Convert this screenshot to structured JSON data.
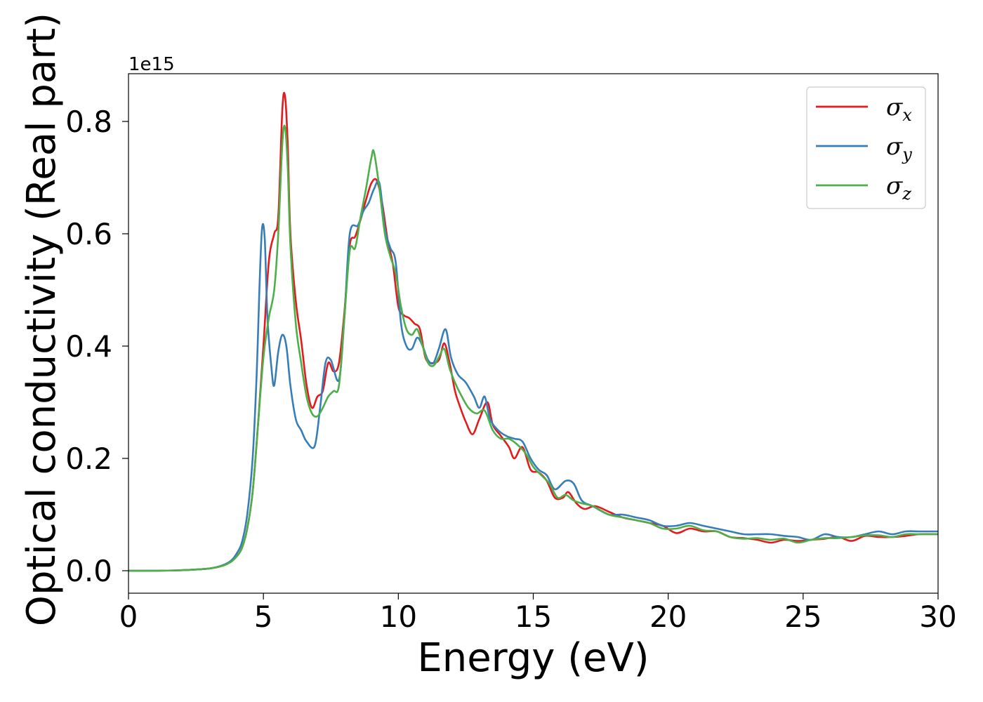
{
  "chart_data": {
    "type": "line",
    "title": "",
    "xlabel": "Energy (eV)",
    "ylabel": "Optical conductivity (Real part)",
    "y_offset_label": "1e15",
    "xlim": [
      0,
      30
    ],
    "ylim": [
      -0.04,
      0.885
    ],
    "xticks": [
      0,
      5,
      10,
      15,
      20,
      25,
      30
    ],
    "xtick_labels": [
      "0",
      "5",
      "10",
      "15",
      "20",
      "25",
      "30"
    ],
    "yticks": [
      0.0,
      0.2,
      0.4,
      0.6,
      0.8
    ],
    "ytick_labels": [
      "0.0",
      "0.2",
      "0.4",
      "0.6",
      "0.8"
    ],
    "grid": false,
    "legend_position": "top-right",
    "series": [
      {
        "name": "σx",
        "legend_base": "σ",
        "legend_sub": "x",
        "color": "#e41a1c",
        "points": [
          [
            0,
            0.0
          ],
          [
            1,
            0.0
          ],
          [
            2,
            0.001
          ],
          [
            3,
            0.004
          ],
          [
            3.5,
            0.009
          ],
          [
            3.8,
            0.016
          ],
          [
            4,
            0.025
          ],
          [
            4.2,
            0.04
          ],
          [
            4.4,
            0.075
          ],
          [
            4.6,
            0.14
          ],
          [
            4.8,
            0.26
          ],
          [
            5.0,
            0.4
          ],
          [
            5.2,
            0.55
          ],
          [
            5.4,
            0.6
          ],
          [
            5.55,
            0.63
          ],
          [
            5.7,
            0.82
          ],
          [
            5.8,
            0.845
          ],
          [
            5.9,
            0.76
          ],
          [
            6.0,
            0.6
          ],
          [
            6.2,
            0.48
          ],
          [
            6.4,
            0.41
          ],
          [
            6.6,
            0.33
          ],
          [
            6.8,
            0.29
          ],
          [
            7.0,
            0.31
          ],
          [
            7.2,
            0.32
          ],
          [
            7.4,
            0.37
          ],
          [
            7.6,
            0.355
          ],
          [
            7.8,
            0.37
          ],
          [
            8.0,
            0.46
          ],
          [
            8.2,
            0.58
          ],
          [
            8.4,
            0.595
          ],
          [
            8.6,
            0.625
          ],
          [
            8.8,
            0.66
          ],
          [
            9.0,
            0.69
          ],
          [
            9.2,
            0.695
          ],
          [
            9.4,
            0.655
          ],
          [
            9.6,
            0.59
          ],
          [
            9.8,
            0.545
          ],
          [
            10.0,
            0.47
          ],
          [
            10.2,
            0.455
          ],
          [
            10.4,
            0.45
          ],
          [
            10.6,
            0.44
          ],
          [
            10.8,
            0.43
          ],
          [
            11.0,
            0.38
          ],
          [
            11.2,
            0.37
          ],
          [
            11.5,
            0.375
          ],
          [
            11.7,
            0.405
          ],
          [
            11.9,
            0.37
          ],
          [
            12.1,
            0.32
          ],
          [
            12.3,
            0.29
          ],
          [
            12.5,
            0.265
          ],
          [
            12.75,
            0.243
          ],
          [
            13.0,
            0.27
          ],
          [
            13.3,
            0.3
          ],
          [
            13.5,
            0.26
          ],
          [
            13.8,
            0.24
          ],
          [
            14.1,
            0.22
          ],
          [
            14.3,
            0.2
          ],
          [
            14.6,
            0.22
          ],
          [
            14.9,
            0.18
          ],
          [
            15.2,
            0.175
          ],
          [
            15.5,
            0.16
          ],
          [
            15.8,
            0.13
          ],
          [
            16.1,
            0.13
          ],
          [
            16.3,
            0.14
          ],
          [
            16.6,
            0.12
          ],
          [
            16.9,
            0.11
          ],
          [
            17.3,
            0.115
          ],
          [
            17.8,
            0.105
          ],
          [
            18.3,
            0.095
          ],
          [
            18.8,
            0.09
          ],
          [
            19.3,
            0.085
          ],
          [
            19.8,
            0.08
          ],
          [
            20.3,
            0.067
          ],
          [
            20.8,
            0.075
          ],
          [
            21.3,
            0.07
          ],
          [
            21.8,
            0.07
          ],
          [
            22.3,
            0.06
          ],
          [
            22.8,
            0.058
          ],
          [
            23.3,
            0.055
          ],
          [
            23.8,
            0.05
          ],
          [
            24.3,
            0.055
          ],
          [
            24.8,
            0.053
          ],
          [
            25.3,
            0.055
          ],
          [
            25.8,
            0.057
          ],
          [
            26.3,
            0.06
          ],
          [
            26.8,
            0.053
          ],
          [
            27.3,
            0.062
          ],
          [
            27.8,
            0.06
          ],
          [
            28.3,
            0.06
          ],
          [
            28.8,
            0.062
          ],
          [
            29.3,
            0.065
          ],
          [
            30,
            0.065
          ]
        ]
      },
      {
        "name": "σy",
        "legend_base": "σ",
        "legend_sub": "y",
        "color": "#377eb8",
        "points": [
          [
            0,
            0.0
          ],
          [
            1,
            0.0
          ],
          [
            2,
            0.001
          ],
          [
            3,
            0.004
          ],
          [
            3.5,
            0.01
          ],
          [
            3.8,
            0.018
          ],
          [
            4,
            0.03
          ],
          [
            4.2,
            0.05
          ],
          [
            4.4,
            0.1
          ],
          [
            4.6,
            0.2
          ],
          [
            4.75,
            0.35
          ],
          [
            4.85,
            0.5
          ],
          [
            4.95,
            0.61
          ],
          [
            5.05,
            0.59
          ],
          [
            5.15,
            0.45
          ],
          [
            5.3,
            0.36
          ],
          [
            5.4,
            0.33
          ],
          [
            5.55,
            0.39
          ],
          [
            5.7,
            0.42
          ],
          [
            5.85,
            0.4
          ],
          [
            6.0,
            0.33
          ],
          [
            6.2,
            0.27
          ],
          [
            6.4,
            0.25
          ],
          [
            6.6,
            0.23
          ],
          [
            6.9,
            0.222
          ],
          [
            7.1,
            0.29
          ],
          [
            7.3,
            0.37
          ],
          [
            7.5,
            0.375
          ],
          [
            7.8,
            0.34
          ],
          [
            8.0,
            0.45
          ],
          [
            8.2,
            0.6
          ],
          [
            8.5,
            0.615
          ],
          [
            8.7,
            0.64
          ],
          [
            8.9,
            0.655
          ],
          [
            9.1,
            0.68
          ],
          [
            9.3,
            0.69
          ],
          [
            9.5,
            0.61
          ],
          [
            9.7,
            0.575
          ],
          [
            9.9,
            0.55
          ],
          [
            10.1,
            0.44
          ],
          [
            10.3,
            0.4
          ],
          [
            10.5,
            0.395
          ],
          [
            10.7,
            0.415
          ],
          [
            10.9,
            0.4
          ],
          [
            11.1,
            0.375
          ],
          [
            11.3,
            0.37
          ],
          [
            11.5,
            0.395
          ],
          [
            11.75,
            0.43
          ],
          [
            11.95,
            0.38
          ],
          [
            12.2,
            0.35
          ],
          [
            12.5,
            0.335
          ],
          [
            12.8,
            0.31
          ],
          [
            13.0,
            0.29
          ],
          [
            13.2,
            0.31
          ],
          [
            13.4,
            0.27
          ],
          [
            13.7,
            0.25
          ],
          [
            14.0,
            0.24
          ],
          [
            14.3,
            0.235
          ],
          [
            14.6,
            0.23
          ],
          [
            14.9,
            0.2
          ],
          [
            15.2,
            0.18
          ],
          [
            15.5,
            0.17
          ],
          [
            15.8,
            0.145
          ],
          [
            16.2,
            0.16
          ],
          [
            16.5,
            0.155
          ],
          [
            16.8,
            0.125
          ],
          [
            17.2,
            0.115
          ],
          [
            17.8,
            0.1
          ],
          [
            18.3,
            0.1
          ],
          [
            18.8,
            0.095
          ],
          [
            19.3,
            0.09
          ],
          [
            19.8,
            0.08
          ],
          [
            20.3,
            0.08
          ],
          [
            20.8,
            0.085
          ],
          [
            21.3,
            0.08
          ],
          [
            21.8,
            0.075
          ],
          [
            22.3,
            0.07
          ],
          [
            22.8,
            0.065
          ],
          [
            23.3,
            0.065
          ],
          [
            23.8,
            0.065
          ],
          [
            24.3,
            0.062
          ],
          [
            24.8,
            0.06
          ],
          [
            25.3,
            0.055
          ],
          [
            25.8,
            0.065
          ],
          [
            26.3,
            0.06
          ],
          [
            26.8,
            0.06
          ],
          [
            27.3,
            0.065
          ],
          [
            27.8,
            0.07
          ],
          [
            28.3,
            0.065
          ],
          [
            28.8,
            0.07
          ],
          [
            29.3,
            0.07
          ],
          [
            30,
            0.07
          ]
        ]
      },
      {
        "name": "σz",
        "legend_base": "σ",
        "legend_sub": "z",
        "color": "#4daf4a",
        "points": [
          [
            0,
            0.0
          ],
          [
            1,
            0.0
          ],
          [
            2,
            0.001
          ],
          [
            3,
            0.004
          ],
          [
            3.5,
            0.009
          ],
          [
            3.8,
            0.016
          ],
          [
            4,
            0.025
          ],
          [
            4.2,
            0.04
          ],
          [
            4.4,
            0.075
          ],
          [
            4.6,
            0.14
          ],
          [
            4.8,
            0.26
          ],
          [
            5.0,
            0.38
          ],
          [
            5.2,
            0.45
          ],
          [
            5.4,
            0.5
          ],
          [
            5.55,
            0.6
          ],
          [
            5.7,
            0.76
          ],
          [
            5.8,
            0.79
          ],
          [
            5.9,
            0.72
          ],
          [
            6.0,
            0.58
          ],
          [
            6.2,
            0.44
          ],
          [
            6.4,
            0.37
          ],
          [
            6.6,
            0.31
          ],
          [
            6.8,
            0.28
          ],
          [
            7.0,
            0.275
          ],
          [
            7.2,
            0.29
          ],
          [
            7.4,
            0.31
          ],
          [
            7.6,
            0.32
          ],
          [
            7.8,
            0.33
          ],
          [
            8.0,
            0.45
          ],
          [
            8.2,
            0.57
          ],
          [
            8.4,
            0.575
          ],
          [
            8.6,
            0.63
          ],
          [
            8.8,
            0.68
          ],
          [
            9.0,
            0.735
          ],
          [
            9.1,
            0.745
          ],
          [
            9.3,
            0.68
          ],
          [
            9.5,
            0.6
          ],
          [
            9.7,
            0.56
          ],
          [
            9.9,
            0.53
          ],
          [
            10.1,
            0.47
          ],
          [
            10.3,
            0.43
          ],
          [
            10.5,
            0.42
          ],
          [
            10.7,
            0.43
          ],
          [
            10.9,
            0.4
          ],
          [
            11.1,
            0.37
          ],
          [
            11.3,
            0.365
          ],
          [
            11.5,
            0.38
          ],
          [
            11.7,
            0.395
          ],
          [
            11.9,
            0.36
          ],
          [
            12.1,
            0.335
          ],
          [
            12.3,
            0.315
          ],
          [
            12.6,
            0.29
          ],
          [
            12.9,
            0.28
          ],
          [
            13.2,
            0.285
          ],
          [
            13.5,
            0.25
          ],
          [
            13.8,
            0.235
          ],
          [
            14.1,
            0.235
          ],
          [
            14.4,
            0.225
          ],
          [
            14.7,
            0.21
          ],
          [
            15.0,
            0.185
          ],
          [
            15.3,
            0.17
          ],
          [
            15.6,
            0.155
          ],
          [
            15.9,
            0.13
          ],
          [
            16.2,
            0.135
          ],
          [
            16.5,
            0.125
          ],
          [
            16.8,
            0.12
          ],
          [
            17.2,
            0.115
          ],
          [
            17.8,
            0.1
          ],
          [
            18.3,
            0.095
          ],
          [
            18.8,
            0.09
          ],
          [
            19.3,
            0.085
          ],
          [
            19.8,
            0.075
          ],
          [
            20.3,
            0.075
          ],
          [
            20.8,
            0.08
          ],
          [
            21.3,
            0.072
          ],
          [
            21.8,
            0.07
          ],
          [
            22.3,
            0.06
          ],
          [
            22.8,
            0.057
          ],
          [
            23.3,
            0.058
          ],
          [
            23.8,
            0.055
          ],
          [
            24.3,
            0.057
          ],
          [
            24.8,
            0.05
          ],
          [
            25.3,
            0.055
          ],
          [
            25.8,
            0.058
          ],
          [
            26.3,
            0.058
          ],
          [
            26.8,
            0.06
          ],
          [
            27.3,
            0.063
          ],
          [
            27.8,
            0.063
          ],
          [
            28.3,
            0.06
          ],
          [
            28.8,
            0.065
          ],
          [
            29.3,
            0.065
          ],
          [
            30,
            0.065
          ]
        ]
      }
    ]
  }
}
